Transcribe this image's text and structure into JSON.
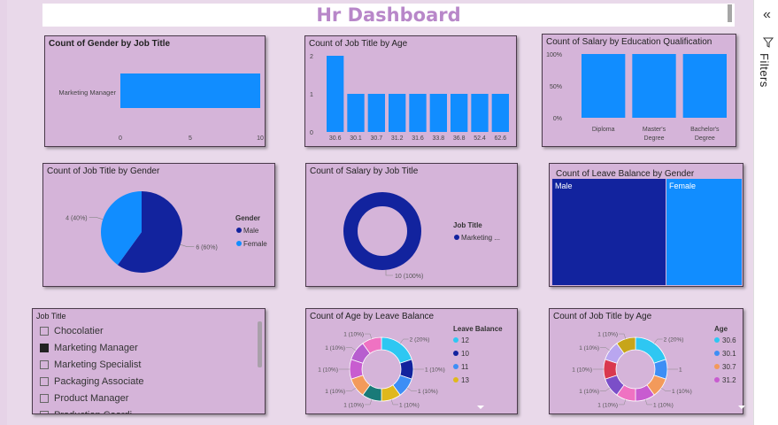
{
  "dashboard": {
    "title": "Hr Dashboard"
  },
  "filters_pane": {
    "label": "Filters",
    "collapse_icon": "double-chevron-left-icon",
    "filter_icon": "funnel-icon"
  },
  "visuals": {
    "gender_by_job": {
      "title": "Count of Gender by Job Title"
    },
    "job_by_age": {
      "title": "Count of Job Title by Age"
    },
    "salary_by_edu": {
      "title": "Count of Salary by Education Qualification"
    },
    "job_by_gender": {
      "title": "Count of Job Title by Gender",
      "legend_title": "Gender",
      "legend": [
        "Male",
        "Female"
      ]
    },
    "salary_by_job": {
      "title": "Count of Salary by Job Title",
      "legend_title": "Job Title",
      "legend": [
        "Marketing ..."
      ]
    },
    "leave_by_gender": {
      "title": "Count of Leave Balance by Gender",
      "cells": [
        "Male",
        "Female"
      ]
    },
    "age_by_leave": {
      "title": "Count of Age by Leave Balance",
      "legend_title": "Leave Balance",
      "legend": [
        "12",
        "10",
        "11",
        "13"
      ]
    },
    "job_by_age2": {
      "title": "Count of Job Title by Age",
      "legend_title": "Age",
      "legend": [
        "30.6",
        "30.1",
        "30.7",
        "31.2"
      ]
    }
  },
  "slicer": {
    "title": "Job Title",
    "items": [
      {
        "label": "Chocolatier",
        "checked": false
      },
      {
        "label": "Marketing Manager",
        "checked": true
      },
      {
        "label": "Marketing Specialist",
        "checked": false
      },
      {
        "label": "Packaging Associate",
        "checked": false
      },
      {
        "label": "Product Manager",
        "checked": false
      },
      {
        "label": "Production Coordi...",
        "checked": false
      }
    ]
  },
  "colors": {
    "blue": "#118dff",
    "navy": "#12239e",
    "panel": "#d5b4d9",
    "title": "#b887c9"
  },
  "chart_data": [
    {
      "type": "bar",
      "orientation": "horizontal",
      "title": "Count of Gender by Job Title",
      "categories": [
        "Marketing Manager"
      ],
      "values": [
        10
      ],
      "xlim": [
        0,
        10
      ],
      "xticks": [
        "0",
        "5",
        "10"
      ]
    },
    {
      "type": "bar",
      "title": "Count of Job Title by Age",
      "categories": [
        "30.6",
        "30.1",
        "30.7",
        "31.2",
        "31.6",
        "33.8",
        "36.8",
        "52.4",
        "62.6"
      ],
      "values": [
        2,
        1,
        1,
        1,
        1,
        1,
        1,
        1,
        1
      ],
      "ylim": [
        0,
        2
      ],
      "yticks": [
        "0",
        "1",
        "2"
      ]
    },
    {
      "type": "bar",
      "title": "Count of Salary by Education Qualification",
      "categories": [
        "Diploma",
        "Master's Degree",
        "Bachelor's Degree"
      ],
      "values": [
        100,
        100,
        100
      ],
      "ylim": [
        0,
        100
      ],
      "yticks": [
        "0%",
        "50%",
        "100%"
      ]
    },
    {
      "type": "pie",
      "title": "Count of Job Title by Gender",
      "slices": [
        {
          "name": "Male",
          "value": 6,
          "label": "6 (60%)",
          "color": "#12239e"
        },
        {
          "name": "Female",
          "value": 4,
          "label": "4 (40%)",
          "color": "#118dff"
        }
      ]
    },
    {
      "type": "pie",
      "donut": true,
      "title": "Count of Salary by Job Title",
      "slices": [
        {
          "name": "Marketing ...",
          "value": 10,
          "label": "10 (100%)",
          "color": "#12239e"
        }
      ]
    },
    {
      "type": "table",
      "subtype": "treemap",
      "title": "Count of Leave Balance by Gender",
      "cells": [
        {
          "name": "Male",
          "value": 5
        },
        {
          "name": "Female",
          "value": 5
        }
      ]
    },
    {
      "type": "pie",
      "donut": true,
      "title": "Count of Age by Leave Balance",
      "slices": [
        {
          "name": "12",
          "value": 2,
          "label": "2 (20%)",
          "color": "#2ec7f2"
        },
        {
          "name": "10",
          "value": 1,
          "label": "1 (10%)",
          "color": "#12239e"
        },
        {
          "name": "11",
          "value": 1,
          "label": "1 (10%)",
          "color": "#3d8ef5"
        },
        {
          "name": "13",
          "value": 1,
          "label": "1 (10%)",
          "color": "#e0b81c"
        },
        {
          "name": "",
          "value": 1,
          "label": "1 (10%)",
          "color": "#197a78"
        },
        {
          "name": "",
          "value": 1,
          "label": "1 (10%)",
          "color": "#f39a5b"
        },
        {
          "name": "",
          "value": 1,
          "label": "1 (10%)",
          "color": "#c85cd0"
        },
        {
          "name": "",
          "value": 1,
          "label": "1 (10%)",
          "color": "#b75ecf"
        },
        {
          "name": "",
          "value": 1,
          "label": "1 (10%)",
          "color": "#ef72c2"
        }
      ]
    },
    {
      "type": "pie",
      "donut": true,
      "title": "Count of Job Title by Age",
      "slices": [
        {
          "name": "30.6",
          "value": 2,
          "label": "2 (20%)",
          "color": "#2ec7f2"
        },
        {
          "name": "30.1",
          "value": 1,
          "label": "1",
          "color": "#3d8ef5"
        },
        {
          "name": "30.7",
          "value": 1,
          "label": "1 (10%)",
          "color": "#f39a5b"
        },
        {
          "name": "31.2",
          "value": 1,
          "label": "1 (10%)",
          "color": "#c85cd0"
        },
        {
          "name": "",
          "value": 1,
          "label": "1 (10%)",
          "color": "#ef72c2"
        },
        {
          "name": "",
          "value": 1,
          "label": "1 (10%)",
          "color": "#7b4fc8"
        },
        {
          "name": "",
          "value": 1,
          "label": "1 (10%)",
          "color": "#d9394f"
        },
        {
          "name": "",
          "value": 1,
          "label": "1 (10%)",
          "color": "#b9a6f0"
        },
        {
          "name": "",
          "value": 1,
          "label": "1 (10%)",
          "color": "#c7a51a"
        }
      ]
    }
  ]
}
